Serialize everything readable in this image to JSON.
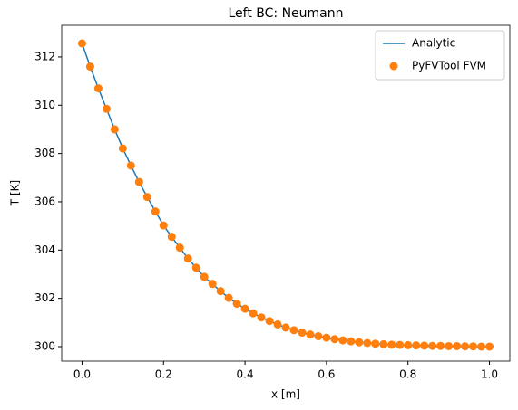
{
  "chart_data": {
    "type": "line",
    "title": "Left BC: Neumann",
    "x_label": "x [m]",
    "y_label": "T [K]",
    "x": [
      0,
      0.02,
      0.04,
      0.06,
      0.08,
      0.1,
      0.12,
      0.14,
      0.16,
      0.18,
      0.2,
      0.22,
      0.24,
      0.26,
      0.28,
      0.3,
      0.32,
      0.34,
      0.36,
      0.38,
      0.4,
      0.42,
      0.44,
      0.46,
      0.48,
      0.5,
      0.52,
      0.54,
      0.56,
      0.58,
      0.6,
      0.62,
      0.64,
      0.66,
      0.68,
      0.7,
      0.72,
      0.74,
      0.76,
      0.78,
      0.8,
      0.82,
      0.84,
      0.86,
      0.88,
      0.9,
      0.92,
      0.94,
      0.96,
      0.98,
      1.0
    ],
    "series": [
      {
        "name": "Analytic",
        "color": "#1f77b4",
        "kind": "line",
        "values": [
          312.56,
          311.6,
          310.7,
          309.85,
          309.0,
          308.21,
          307.5,
          306.82,
          306.2,
          305.6,
          305.02,
          304.55,
          304.1,
          303.65,
          303.27,
          302.89,
          302.6,
          302.3,
          302.02,
          301.78,
          301.57,
          301.38,
          301.21,
          301.06,
          300.92,
          300.79,
          300.68,
          300.58,
          300.5,
          300.43,
          300.37,
          300.31,
          300.26,
          300.22,
          300.18,
          300.15,
          300.12,
          300.1,
          300.08,
          300.07,
          300.06,
          300.05,
          300.04,
          300.03,
          300.03,
          300.02,
          300.02,
          300.01,
          300.01,
          300.0,
          300.0
        ]
      },
      {
        "name": "PyFVTool FVM",
        "color": "#ff7f0e",
        "kind": "scatter",
        "values": [
          312.56,
          311.6,
          310.7,
          309.85,
          309.0,
          308.21,
          307.5,
          306.82,
          306.2,
          305.6,
          305.02,
          304.55,
          304.1,
          303.65,
          303.27,
          302.89,
          302.6,
          302.3,
          302.02,
          301.78,
          301.57,
          301.38,
          301.21,
          301.06,
          300.92,
          300.79,
          300.68,
          300.58,
          300.5,
          300.43,
          300.37,
          300.31,
          300.26,
          300.22,
          300.18,
          300.15,
          300.12,
          300.1,
          300.08,
          300.07,
          300.06,
          300.05,
          300.04,
          300.03,
          300.03,
          300.02,
          300.02,
          300.01,
          300.01,
          300.0,
          300.0
        ]
      }
    ],
    "xlim": [
      -0.05,
      1.05
    ],
    "ylim": [
      299.4,
      313.31
    ],
    "xticks": [
      {
        "value": 0,
        "label": "0.0"
      },
      {
        "value": 0.2,
        "label": "0.2"
      },
      {
        "value": 0.4,
        "label": "0.4"
      },
      {
        "value": 0.6,
        "label": "0.6"
      },
      {
        "value": 0.8,
        "label": "0.8"
      },
      {
        "value": 1,
        "label": "1.0"
      }
    ],
    "yticks": [
      300,
      302,
      304,
      306,
      308,
      310,
      312
    ],
    "legend": "upper right",
    "grid": false
  }
}
